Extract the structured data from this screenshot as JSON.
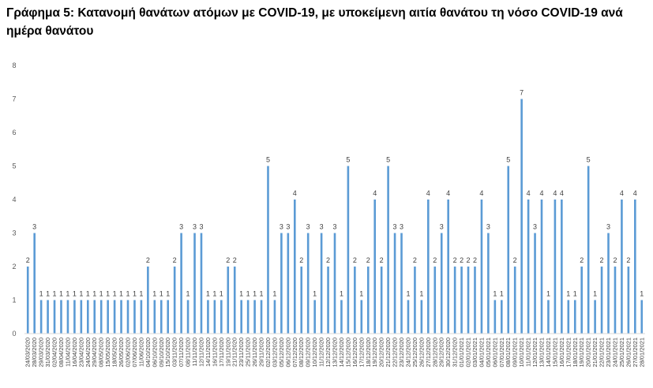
{
  "title": "Γράφημα 5: Κατανομή θανάτων ατόμων με COVID-19, με υποκείμενη αιτία θανάτου τη νόσο COVID-19 ανά ημέρα θανάτου",
  "colors": {
    "bar": "#5B9BD5",
    "axis": "#D9D9D9"
  },
  "chart_data": {
    "type": "bar",
    "title": "Γράφημα 5: Κατανομή θανάτων ατόμων με COVID-19, με υποκείμενη αιτία θανάτου τη νόσο COVID-19 ανά ημέρα θανάτου",
    "xlabel": "",
    "ylabel": "",
    "ylim": [
      0,
      8
    ],
    "yticks": [
      0,
      1,
      2,
      3,
      4,
      5,
      6,
      7,
      8
    ],
    "grid": false,
    "legend": "none",
    "values": [
      2,
      3,
      1,
      1,
      1,
      1,
      1,
      1,
      1,
      1,
      1,
      1,
      1,
      1,
      1,
      1,
      1,
      1,
      2,
      1,
      1,
      1,
      2,
      3,
      1,
      3,
      3,
      1,
      1,
      1,
      2,
      2,
      1,
      1,
      1,
      1,
      5,
      1,
      3,
      3,
      4,
      2,
      3,
      1,
      3,
      2,
      3,
      1,
      5,
      2,
      1,
      2,
      4,
      2,
      5,
      3,
      3,
      1,
      2,
      1,
      4,
      2,
      3,
      4,
      2,
      2,
      2,
      2,
      4,
      3,
      1,
      1,
      5,
      2,
      7,
      4,
      3,
      4,
      1,
      4,
      4,
      1,
      1,
      2,
      5,
      1,
      2,
      3,
      2,
      4,
      2,
      4,
      1
    ],
    "x_tick_labels": [
      "24/03/2020",
      "28/03/2020",
      "29/03/2020",
      "31/03/2020",
      "02/04/2020",
      "08/04/2020",
      "11/04/2020",
      "16/04/2020",
      "23/04/2020",
      "24/04/2020",
      "29/04/2020",
      "08/05/2020",
      "15/05/2020",
      "18/05/2020",
      "26/05/2020",
      "02/06/2020",
      "07/06/2020",
      "11/06/2020",
      "04/10/2020",
      "06/10/2020",
      "09/10/2020",
      "15/10/2020",
      "03/11/2020",
      "07/11/2020",
      "08/11/2020",
      "11/11/2020",
      "12/11/2020",
      "14/11/2020",
      "16/11/2020",
      "17/11/2020",
      "19/11/2020",
      "21/11/2020",
      "23/11/2020",
      "25/11/2020",
      "26/11/2020",
      "29/11/2020",
      "02/12/2020",
      "03/12/2020",
      "05/12/2020",
      "06/12/2020",
      "07/12/2020",
      "08/12/2020",
      "09/12/2020",
      "10/12/2020",
      "11/12/2020",
      "12/12/2020",
      "13/12/2020",
      "14/12/2020",
      "15/12/2020",
      "16/12/2020",
      "17/12/2020",
      "18/12/2020",
      "19/12/2020",
      "20/12/2020",
      "21/12/2020",
      "22/12/2020",
      "23/12/2020",
      "24/12/2020",
      "25/12/2020",
      "26/12/2020",
      "27/12/2020",
      "28/12/2020",
      "29/12/2020",
      "30/12/2020",
      "31/12/2020",
      "01/01/2021",
      "02/01/2021",
      "03/01/2021",
      "04/01/2021",
      "05/01/2021",
      "06/01/2021",
      "07/01/2021",
      "08/01/2021",
      "09/01/2021",
      "10/01/2021",
      "11/01/2021",
      "12/01/2021",
      "13/01/2021",
      "14/01/2021",
      "15/01/2021",
      "16/01/2021",
      "17/01/2021",
      "18/01/2021",
      "19/01/2021",
      "20/01/2021",
      "21/01/2021",
      "22/01/2021",
      "23/01/2021",
      "24/01/2021",
      "25/01/2021",
      "26/01/2021",
      "27/01/2021",
      "28/01/2021"
    ]
  }
}
